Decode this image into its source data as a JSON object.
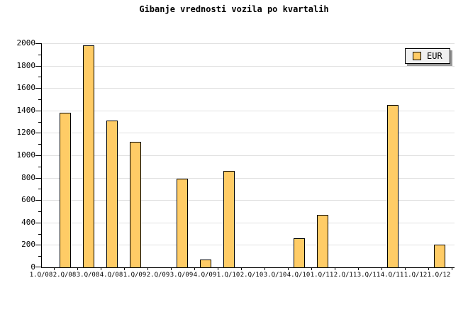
{
  "title": "Gibanje vrednosti vozila po kvartalih",
  "legend": {
    "label": "EUR",
    "position": "top-right"
  },
  "colors": {
    "bar_fill": "#FFCC66",
    "bar_border": "#000000",
    "grid": "#E0E0E0",
    "axis": "#000000",
    "legend_bg": "#F0F0F0",
    "legend_shadow": "#999999",
    "background": "#FFFFFF"
  },
  "chart_data": {
    "type": "bar",
    "title": "Gibanje vrednosti vozila po kvartalih",
    "categories": [
      "1.Q/08",
      "2.Q/08",
      "3.Q/08",
      "4.Q/08",
      "1.Q/09",
      "2.Q/09",
      "3.Q/09",
      "4.Q/09",
      "1.Q/10",
      "2.Q/10",
      "3.Q/10",
      "4.Q/10",
      "1.Q/11",
      "2.Q/11",
      "3.Q/11",
      "4.Q/11",
      "1.Q/12",
      "1.Q/12"
    ],
    "series": [
      {
        "name": "EUR",
        "values": [
          0,
          1380,
          1980,
          1310,
          1120,
          0,
          790,
          70,
          860,
          0,
          0,
          260,
          470,
          0,
          0,
          1450,
          0,
          200
        ]
      }
    ],
    "xlabel": "",
    "ylabel": "",
    "ylim": [
      0,
      2000
    ],
    "ytick_step": 200,
    "yminor_step": 100,
    "grid": "horizontal-major",
    "legend_position": "top-right"
  }
}
